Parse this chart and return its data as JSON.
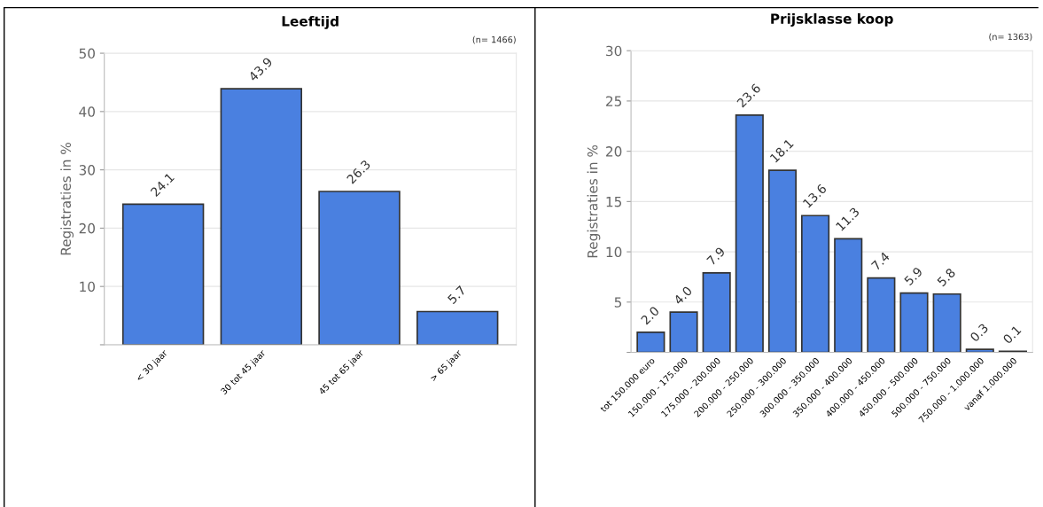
{
  "chart_data": [
    {
      "type": "bar",
      "title": "Leeftijd",
      "ylabel": "Registraties in %",
      "annotations": [
        "(n= 1466)"
      ],
      "categories": [
        "< 30 jaar",
        "30 tot 45 jaar",
        "45 tot 65 jaar",
        "> 65 jaar"
      ],
      "values": [
        24.1,
        43.9,
        26.3,
        5.7
      ],
      "value_labels": [
        "24.1",
        "43.9",
        "26.3",
        "5.7"
      ],
      "color": "#4a80e0",
      "grid": "y",
      "ylim": [
        0,
        50
      ],
      "yticks": [
        {
          "value": 0,
          "label": null
        },
        10,
        20,
        30,
        40,
        50
      ]
    },
    {
      "type": "bar",
      "title": "Prijsklasse koop",
      "ylabel": "Registraties in %",
      "annotations": [
        "(n= 1363)"
      ],
      "categories": [
        "tot 150.000 euro",
        "150.000 - 175.000",
        "175.000 - 200.000",
        "200.000 - 250.000",
        "250.000 - 300.000",
        "300.000 - 350.000",
        "350.000 - 400.000",
        "400.000 - 450.000",
        "450.000 - 500.000",
        "500.000 - 750.000",
        "750.000 - 1.000.000",
        "vanaf 1.000.000"
      ],
      "values": [
        2,
        4,
        7.9,
        23.6,
        18.1,
        13.6,
        11.3,
        7.4,
        5.9,
        5.8,
        0.3,
        0.1
      ],
      "value_labels": [
        "2.0",
        "4.0",
        "7.9",
        "23.6",
        "18.1",
        "13.6",
        "11.3",
        "7.4",
        "5.9",
        "5.8",
        "0.3",
        "0.1"
      ],
      "color": "#4a80e0",
      "grid": "y",
      "ylim": [
        0,
        30
      ],
      "yticks": [
        {
          "value": 0,
          "label": null
        },
        5,
        10,
        15,
        20,
        25,
        30
      ]
    }
  ]
}
